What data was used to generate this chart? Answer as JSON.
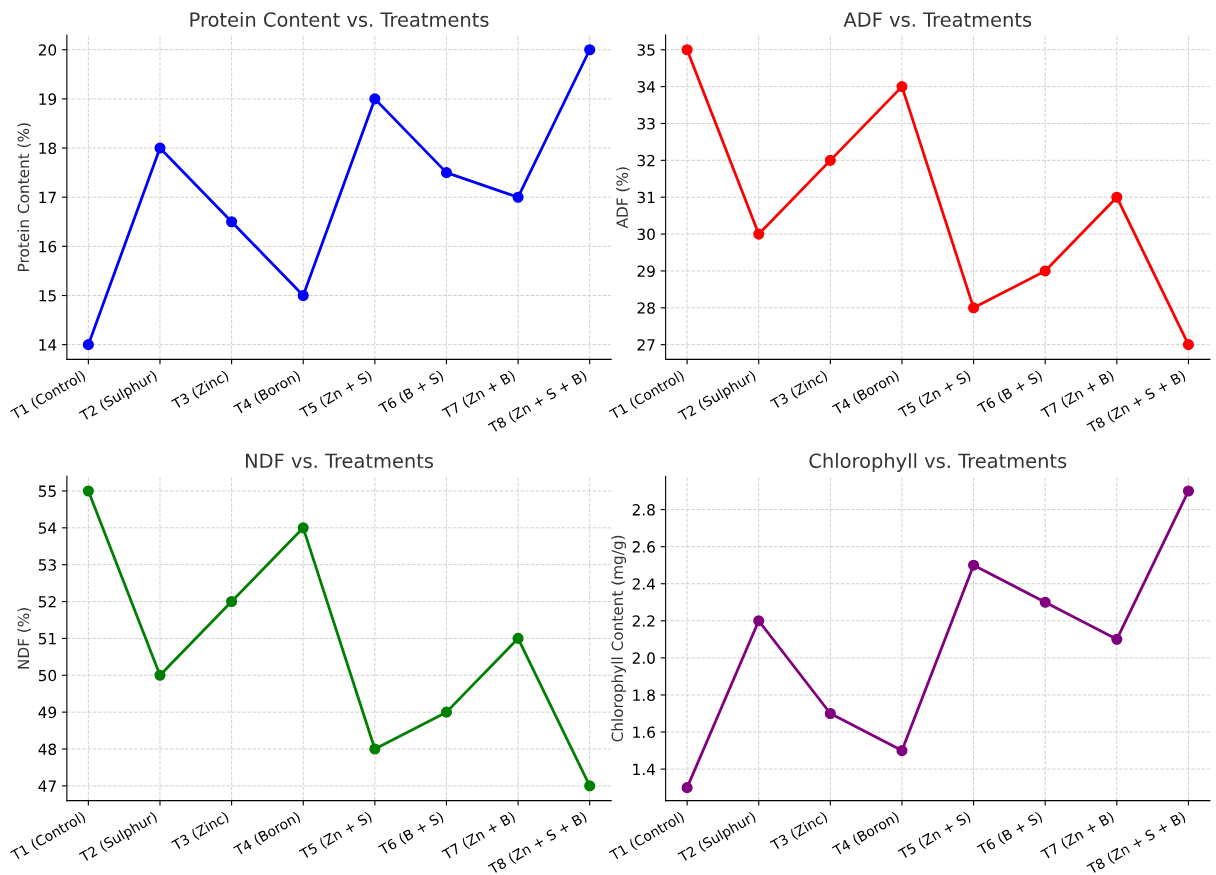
{
  "chart_data": [
    {
      "type": "line",
      "title": "Protein Content vs. Treatments",
      "ylabel": "Protein Content (%)",
      "categories": [
        "T1 (Control)",
        "T2 (Sulphur)",
        "T3 (Zinc)",
        "T4 (Boron)",
        "T5 (Zn + S)",
        "T6 (B + S)",
        "T7 (Zn + B)",
        "T8 (Zn + S + B)"
      ],
      "series": [
        {
          "color": "#0000ff",
          "values": [
            14,
            18,
            16.5,
            15,
            19,
            17.5,
            17,
            20
          ]
        }
      ],
      "ylim": [
        13.7,
        20.3
      ],
      "yticks": [
        14,
        15,
        16,
        17,
        18,
        19,
        20
      ],
      "grid": true,
      "marker": "circle",
      "line_style": "solid"
    },
    {
      "type": "line",
      "title": "ADF vs. Treatments",
      "ylabel": "ADF (%)",
      "categories": [
        "T1 (Control)",
        "T2 (Sulphur)",
        "T3 (Zinc)",
        "T4 (Boron)",
        "T5 (Zn + S)",
        "T6 (B + S)",
        "T7 (Zn + B)",
        "T8 (Zn + S + B)"
      ],
      "series": [
        {
          "color": "#ff0000",
          "values": [
            35,
            30,
            32,
            34,
            28,
            29,
            31,
            27
          ]
        }
      ],
      "ylim": [
        26.6,
        35.4
      ],
      "yticks": [
        27,
        28,
        29,
        30,
        31,
        32,
        33,
        34,
        35
      ],
      "grid": true,
      "marker": "circle",
      "line_style": "solid"
    },
    {
      "type": "line",
      "title": "NDF vs. Treatments",
      "ylabel": "NDF (%)",
      "categories": [
        "T1 (Control)",
        "T2 (Sulphur)",
        "T3 (Zinc)",
        "T4 (Boron)",
        "T5 (Zn + S)",
        "T6 (B + S)",
        "T7 (Zn + B)",
        "T8 (Zn + S + B)"
      ],
      "series": [
        {
          "color": "#008000",
          "values": [
            55,
            50,
            52,
            54,
            48,
            49,
            51,
            47
          ]
        }
      ],
      "ylim": [
        46.6,
        55.4
      ],
      "yticks": [
        47,
        48,
        49,
        50,
        51,
        52,
        53,
        54,
        55
      ],
      "grid": true,
      "marker": "circle",
      "line_style": "solid"
    },
    {
      "type": "line",
      "title": "Chlorophyll vs. Treatments",
      "ylabel": "Chlorophyll Content (mg/g)",
      "categories": [
        "T1 (Control)",
        "T2 (Sulphur)",
        "T3 (Zinc)",
        "T4 (Boron)",
        "T5 (Zn + S)",
        "T6 (B + S)",
        "T7 (Zn + B)",
        "T8 (Zn + S + B)"
      ],
      "series": [
        {
          "color": "#800080",
          "values": [
            1.3,
            2.2,
            1.7,
            1.5,
            2.5,
            2.3,
            2.1,
            2.9
          ]
        }
      ],
      "ylim": [
        1.23,
        2.98
      ],
      "yticks": [
        {
          "value": 1.4,
          "label": "1.4"
        },
        {
          "value": 1.6,
          "label": "1.6"
        },
        {
          "value": 1.8,
          "label": "1.8"
        },
        {
          "value": 2.0,
          "label": "2.0"
        },
        {
          "value": 2.2,
          "label": "2.2"
        },
        {
          "value": 2.4,
          "label": "2.4"
        },
        {
          "value": 2.6,
          "label": "2.6"
        },
        {
          "value": 2.8,
          "label": "2.8"
        }
      ],
      "grid": true,
      "marker": "circle",
      "line_style": "solid"
    }
  ]
}
